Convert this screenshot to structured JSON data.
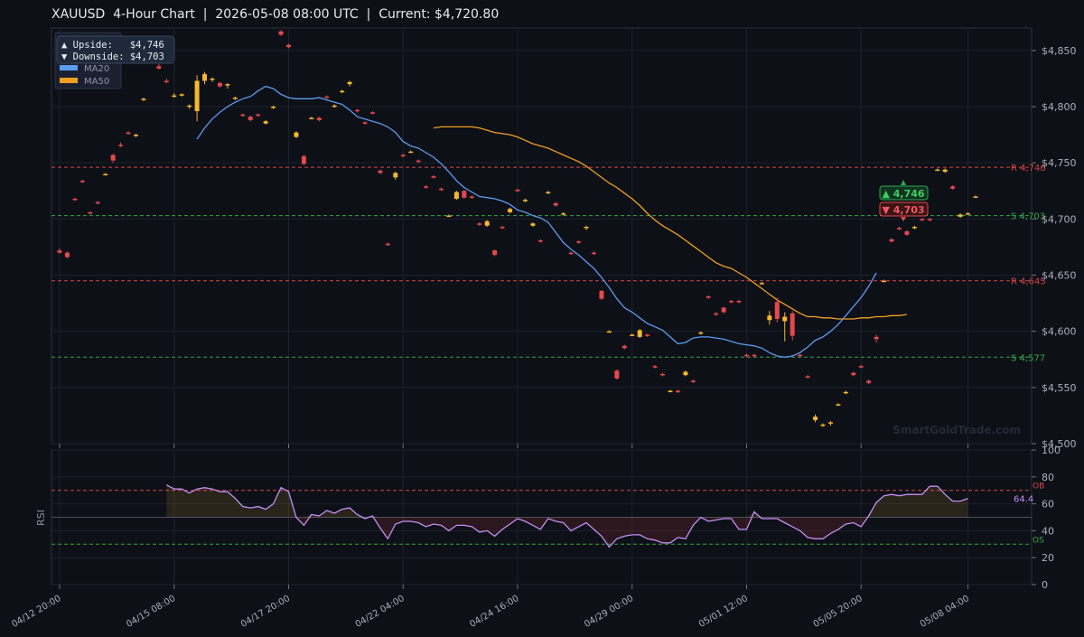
{
  "title": "XAUUSD  4-Hour Chart  |  2026-05-08 08:00 UTC  |  Current: $4,720.80",
  "colors": {
    "background": "#0d1017",
    "bull": "#f5b82e",
    "bear": "#e5484d",
    "ma20": "#5b9cf0",
    "ma50": "#f29f1f",
    "rsi": "#c48ef5",
    "support": "#2fa84f",
    "resistance": "#d6454a"
  },
  "watermark": "SmartGoldTrade.com",
  "info_box": {
    "upside": "▲ Upside:   $4,746",
    "downside": "▼ Downside: $4,703"
  },
  "legend": [
    {
      "label": "MA20",
      "color": "#5b9cf0"
    },
    {
      "label": "MA50",
      "color": "#f29f1f"
    }
  ],
  "badges": {
    "up": "▲ 4,746",
    "down": "▼ 4,703"
  },
  "chart_data": [
    {
      "type": "candlestick",
      "ylim": [
        4500,
        4870
      ],
      "y_ticks": [
        "$4,500",
        "$4,550",
        "$4,600",
        "$4,650",
        "$4,700",
        "$4,750",
        "$4,800",
        "$4,850"
      ],
      "y_tick_values": [
        4500,
        4550,
        4600,
        4650,
        4700,
        4750,
        4800,
        4850
      ],
      "x_ticks": [
        "04/12 20:00",
        "04/15 08:00",
        "04/17 20:00",
        "04/22 04:00",
        "04/24 16:00",
        "04/29 00:00",
        "05/01 12:00",
        "05/05 20:00",
        "05/08 04:00"
      ],
      "x_tick_index": [
        0,
        15,
        30,
        45,
        60,
        75,
        90,
        105,
        119
      ],
      "legend_position": "top-left",
      "levels": [
        {
          "label": "R 4,746",
          "value": 4746,
          "kind": "resistance"
        },
        {
          "label": "S 4,703",
          "value": 4703,
          "kind": "support"
        },
        {
          "label": "R 4,645",
          "value": 4645,
          "kind": "resistance"
        },
        {
          "label": "S 4,577",
          "value": 4577,
          "kind": "support"
        }
      ],
      "candles": [
        [
          4672,
          4674,
          4669,
          4670
        ],
        [
          4670,
          4671,
          4665,
          4666
        ],
        [
          4718,
          4719,
          4716,
          4717
        ],
        [
          4734,
          4735,
          4732,
          4733
        ],
        [
          4706,
          4707,
          4704,
          4705
        ],
        [
          4715,
          4716,
          4713,
          4714
        ],
        [
          4740,
          4741,
          4739,
          4740
        ],
        [
          4757,
          4758,
          4750,
          4752
        ],
        [
          4766,
          4768,
          4764,
          4765
        ],
        [
          4777,
          4778,
          4775,
          4776
        ],
        [
          4774,
          4776,
          4773,
          4775
        ],
        [
          4806,
          4808,
          4805,
          4807
        ],
        [
          4844,
          4846,
          4843,
          4844
        ],
        [
          4836,
          4838,
          4833,
          4834
        ],
        [
          4823,
          4825,
          4821,
          4822
        ],
        [
          4810,
          4812,
          4808,
          4810
        ],
        [
          4811,
          4812,
          4809,
          4811
        ],
        [
          4800,
          4802,
          4798,
          4801
        ],
        [
          4796,
          4828,
          4787,
          4823
        ],
        [
          4823,
          4831,
          4820,
          4829
        ],
        [
          4824,
          4826,
          4822,
          4825
        ],
        [
          4821,
          4822,
          4817,
          4818
        ],
        [
          4819,
          4821,
          4816,
          4820
        ],
        [
          4807,
          4809,
          4806,
          4808
        ],
        [
          4793,
          4794,
          4791,
          4792
        ],
        [
          4791,
          4792,
          4787,
          4788
        ],
        [
          4793,
          4794,
          4791,
          4792
        ],
        [
          4785,
          4788,
          4784,
          4787
        ],
        [
          4799,
          4801,
          4798,
          4800
        ],
        [
          4867,
          4868,
          4863,
          4864
        ],
        [
          4855,
          4856,
          4852,
          4853
        ],
        [
          4773,
          4778,
          4772,
          4777
        ],
        [
          4756,
          4757,
          4748,
          4749
        ],
        [
          4790,
          4791,
          4789,
          4790
        ],
        [
          4790,
          4791,
          4787,
          4788
        ],
        [
          4809,
          4810,
          4807,
          4808
        ],
        [
          4800,
          4802,
          4799,
          4801
        ],
        [
          4813,
          4815,
          4812,
          4814
        ],
        [
          4820,
          4823,
          4818,
          4822
        ],
        [
          4797,
          4798,
          4795,
          4796
        ],
        [
          4786,
          4787,
          4784,
          4785
        ],
        [
          4795,
          4796,
          4793,
          4794
        ],
        [
          4743,
          4744,
          4740,
          4741
        ],
        [
          4678,
          4679,
          4676,
          4677
        ],
        [
          4737,
          4742,
          4735,
          4741
        ],
        [
          4757,
          4758,
          4755,
          4756
        ],
        [
          4760,
          4761,
          4759,
          4760
        ],
        [
          4752,
          4753,
          4750,
          4751
        ],
        [
          4729,
          4730,
          4727,
          4728
        ],
        [
          4738,
          4739,
          4736,
          4737
        ],
        [
          4727,
          4728,
          4725,
          4726
        ],
        [
          4703,
          4704,
          4702,
          4703
        ],
        [
          4718,
          4725,
          4717,
          4724
        ],
        [
          4725,
          4726,
          4718,
          4719
        ],
        [
          4720,
          4721,
          4718,
          4719
        ],
        [
          4696,
          4697,
          4694,
          4695
        ],
        [
          4694,
          4699,
          4693,
          4698
        ],
        [
          4672,
          4673,
          4667,
          4668
        ],
        [
          4693,
          4694,
          4691,
          4692
        ],
        [
          4706,
          4710,
          4705,
          4709
        ],
        [
          4726,
          4727,
          4724,
          4725
        ],
        [
          4716,
          4718,
          4715,
          4717
        ],
        [
          4694,
          4697,
          4693,
          4696
        ],
        [
          4681,
          4682,
          4679,
          4680
        ],
        [
          4723,
          4725,
          4722,
          4724
        ],
        [
          4714,
          4715,
          4711,
          4712
        ],
        [
          4704,
          4706,
          4703,
          4705
        ],
        [
          4670,
          4671,
          4668,
          4669
        ],
        [
          4680,
          4681,
          4678,
          4679
        ],
        [
          4692,
          4694,
          4690,
          4693
        ],
        [
          4670,
          4671,
          4668,
          4669
        ],
        [
          4636,
          4637,
          4628,
          4629
        ],
        [
          4600,
          4601,
          4599,
          4600
        ],
        [
          4565,
          4566,
          4557,
          4558
        ],
        [
          4587,
          4588,
          4584,
          4585
        ],
        [
          4597,
          4598,
          4596,
          4597
        ],
        [
          4595,
          4602,
          4594,
          4601
        ],
        [
          4597,
          4598,
          4595,
          4596
        ],
        [
          4569,
          4570,
          4567,
          4568
        ],
        [
          4562,
          4563,
          4560,
          4561
        ],
        [
          4547,
          4548,
          4546,
          4547
        ],
        [
          4547,
          4548,
          4545,
          4546
        ],
        [
          4561,
          4565,
          4560,
          4564
        ],
        [
          4556,
          4557,
          4554,
          4555
        ],
        [
          4598,
          4600,
          4597,
          4599
        ],
        [
          4631,
          4632,
          4629,
          4630
        ],
        [
          4616,
          4617,
          4614,
          4615
        ],
        [
          4621,
          4622,
          4616,
          4617
        ],
        [
          4627,
          4628,
          4625,
          4626
        ],
        [
          4627,
          4628,
          4625,
          4626
        ],
        [
          4579,
          4580,
          4577,
          4578
        ],
        [
          4579,
          4580,
          4577,
          4578
        ],
        [
          4643,
          4644,
          4642,
          4643
        ],
        [
          4610,
          4618,
          4606,
          4614
        ],
        [
          4626,
          4630,
          4608,
          4611
        ],
        [
          4609,
          4617,
          4591,
          4613
        ],
        [
          4616,
          4618,
          4592,
          4596
        ],
        [
          4579,
          4580,
          4577,
          4578
        ],
        [
          4560,
          4561,
          4558,
          4559
        ],
        [
          4521,
          4526,
          4519,
          4524
        ],
        [
          4517,
          4518,
          4515,
          4517
        ],
        [
          4518,
          4520,
          4516,
          4519
        ],
        [
          4535,
          4536,
          4534,
          4535
        ],
        [
          4545,
          4547,
          4544,
          4546
        ],
        [
          4563,
          4564,
          4560,
          4561
        ],
        [
          4569,
          4570,
          4567,
          4568
        ],
        [
          4556,
          4557,
          4553,
          4554
        ],
        [
          4595,
          4597,
          4590,
          4593
        ],
        [
          4645,
          4646,
          4644,
          4645
        ],
        [
          4682,
          4683,
          4679,
          4680
        ],
        [
          4692,
          4693,
          4690,
          4691
        ],
        [
          4689,
          4690,
          4685,
          4686
        ],
        [
          4692,
          4694,
          4691,
          4693
        ],
        [
          4700,
          4701,
          4698,
          4699
        ],
        [
          4700,
          4701,
          4698,
          4699
        ],
        [
          4744,
          4745,
          4743,
          4744
        ],
        [
          4742,
          4745,
          4741,
          4744
        ],
        [
          4729,
          4730,
          4726,
          4727
        ],
        [
          4702,
          4705,
          4701,
          4704
        ],
        [
          4705,
          4706,
          4704,
          4705
        ],
        [
          4720,
          4721,
          4719,
          4720
        ]
      ],
      "ma20": {
        "start": 18,
        "values": [
          4771,
          4781,
          4789,
          4795,
          4800,
          4804,
          4807,
          4809,
          4814,
          4818,
          4816,
          4811,
          4808,
          4807,
          4807,
          4807,
          4808,
          4806,
          4804,
          4802,
          4797,
          4791,
          4789,
          4787,
          4785,
          4782,
          4777,
          4769,
          4765,
          4763,
          4759,
          4755,
          4749,
          4742,
          4734,
          4728,
          4724,
          4720,
          4719,
          4718,
          4716,
          4713,
          4708,
          4706,
          4703,
          4701,
          4697,
          4688,
          4679,
          4673,
          4668,
          4662,
          4656,
          4648,
          4639,
          4629,
          4621,
          4617,
          4612,
          4607,
          4604,
          4601,
          4595,
          4589,
          4590,
          4594,
          4595,
          4595,
          4594,
          4593,
          4591,
          4589,
          4588,
          4587,
          4585,
          4581,
          4578,
          4577,
          4578,
          4581,
          4586,
          4592,
          4595,
          4600,
          4606,
          4614,
          4622,
          4630,
          4640,
          4652
        ]
      },
      "ma50": {
        "start": 49,
        "values": [
          4781,
          4782,
          4782,
          4782,
          4782,
          4782,
          4781,
          4779,
          4777,
          4776,
          4775,
          4773,
          4770,
          4767,
          4765,
          4763,
          4760,
          4757,
          4754,
          4751,
          4747,
          4742,
          4737,
          4732,
          4728,
          4723,
          4718,
          4712,
          4705,
          4699,
          4694,
          4690,
          4686,
          4681,
          4676,
          4671,
          4666,
          4661,
          4658,
          4656,
          4652,
          4648,
          4643,
          4638,
          4633,
          4628,
          4624,
          4620,
          4616,
          4613,
          4613,
          4612,
          4612,
          4611,
          4611,
          4611,
          4612,
          4612,
          4613,
          4613,
          4614,
          4614,
          4615
        ]
      }
    },
    {
      "type": "line",
      "ylabel": "RSI",
      "ylim": [
        0,
        100
      ],
      "y_ticks": [
        "0",
        "20",
        "40",
        "60",
        "80",
        "100"
      ],
      "y_tick_values": [
        0,
        20,
        40,
        60,
        80,
        100
      ],
      "overbought": {
        "label": "OB",
        "value": 70
      },
      "oversold": {
        "label": "OS",
        "value": 30
      },
      "last_value_label": "64.4",
      "start": 14,
      "values": [
        74,
        71,
        71,
        68,
        71,
        72,
        71,
        69,
        69,
        64,
        58,
        57,
        58,
        56,
        60,
        72,
        69,
        50,
        44,
        52,
        51,
        55,
        53,
        56,
        57,
        52,
        49,
        51,
        42,
        34,
        45,
        47,
        47,
        46,
        43,
        45,
        44,
        40,
        44,
        44,
        43,
        39,
        40,
        36,
        41,
        45,
        49,
        47,
        44,
        41,
        49,
        47,
        46,
        40,
        43,
        46,
        41,
        36,
        28,
        34,
        36,
        37,
        37,
        34,
        33,
        31,
        31,
        35,
        34,
        44,
        50,
        47,
        48,
        49,
        49,
        41,
        41,
        54,
        49,
        49,
        49,
        46,
        43,
        40,
        35,
        34,
        34,
        38,
        41,
        45,
        46,
        43,
        51,
        61,
        66,
        67,
        66,
        67,
        67,
        67,
        73,
        73,
        67,
        62,
        62,
        64
      ]
    }
  ]
}
